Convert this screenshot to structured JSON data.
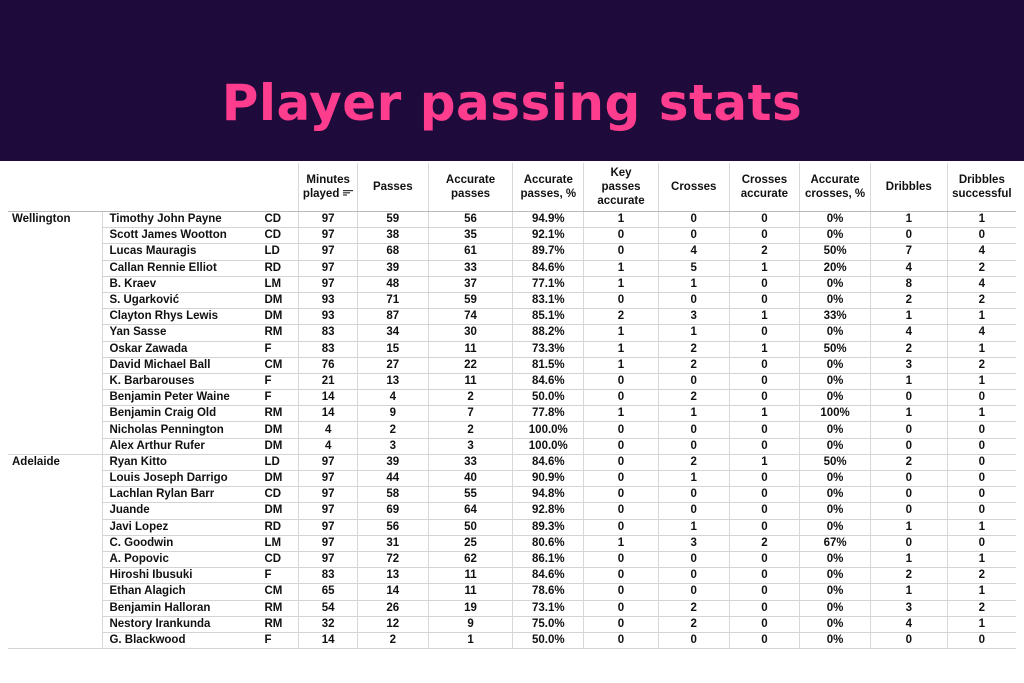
{
  "title": "Player passing stats",
  "chart_data": {
    "type": "table",
    "title": "Player passing stats",
    "columns": [
      "Minutes played",
      "Passes",
      "Accurate passes",
      "Accurate passes, %",
      "Key passes accurate",
      "Crosses",
      "Crosses accurate",
      "Accurate crosses, %",
      "Dribbles",
      "Dribbles successful"
    ],
    "column_lines": [
      [
        "Minutes",
        "played"
      ],
      [
        "Passes"
      ],
      [
        "Accurate",
        "passes"
      ],
      [
        "Accurate",
        "passes, %"
      ],
      [
        "Key",
        "passes",
        "accurate"
      ],
      [
        "Crosses"
      ],
      [
        "Crosses",
        "accurate"
      ],
      [
        "Accurate",
        "crosses, %"
      ],
      [
        "Dribbles"
      ],
      [
        "Dribbles",
        "successful"
      ]
    ],
    "sorted_by": "Minutes played",
    "rows": [
      {
        "team": "Wellington",
        "player": "Timothy John Payne",
        "pos": "CD",
        "values": [
          "97",
          "59",
          "56",
          "94.9%",
          "1",
          "0",
          "0",
          "0%",
          "1",
          "1"
        ]
      },
      {
        "team": "",
        "player": "Scott James Wootton",
        "pos": "CD",
        "values": [
          "97",
          "38",
          "35",
          "92.1%",
          "0",
          "0",
          "0",
          "0%",
          "0",
          "0"
        ]
      },
      {
        "team": "",
        "player": "Lucas Mauragis",
        "pos": "LD",
        "values": [
          "97",
          "68",
          "61",
          "89.7%",
          "0",
          "4",
          "2",
          "50%",
          "7",
          "4"
        ]
      },
      {
        "team": "",
        "player": "Callan Rennie Elliot",
        "pos": "RD",
        "values": [
          "97",
          "39",
          "33",
          "84.6%",
          "1",
          "5",
          "1",
          "20%",
          "4",
          "2"
        ]
      },
      {
        "team": "",
        "player": "B. Kraev",
        "pos": "LM",
        "values": [
          "97",
          "48",
          "37",
          "77.1%",
          "1",
          "1",
          "0",
          "0%",
          "8",
          "4"
        ]
      },
      {
        "team": "",
        "player": "S. Ugarković",
        "pos": "DM",
        "values": [
          "93",
          "71",
          "59",
          "83.1%",
          "0",
          "0",
          "0",
          "0%",
          "2",
          "2"
        ]
      },
      {
        "team": "",
        "player": "Clayton Rhys Lewis",
        "pos": "DM",
        "values": [
          "93",
          "87",
          "74",
          "85.1%",
          "2",
          "3",
          "1",
          "33%",
          "1",
          "1"
        ]
      },
      {
        "team": "",
        "player": "Yan Sasse",
        "pos": "RM",
        "values": [
          "83",
          "34",
          "30",
          "88.2%",
          "1",
          "1",
          "0",
          "0%",
          "4",
          "4"
        ]
      },
      {
        "team": "",
        "player": "Oskar Zawada",
        "pos": "F",
        "values": [
          "83",
          "15",
          "11",
          "73.3%",
          "1",
          "2",
          "1",
          "50%",
          "2",
          "1"
        ]
      },
      {
        "team": "",
        "player": "David Michael Ball",
        "pos": "CM",
        "values": [
          "76",
          "27",
          "22",
          "81.5%",
          "1",
          "2",
          "0",
          "0%",
          "3",
          "2"
        ]
      },
      {
        "team": "",
        "player": "K. Barbarouses",
        "pos": "F",
        "values": [
          "21",
          "13",
          "11",
          "84.6%",
          "0",
          "0",
          "0",
          "0%",
          "1",
          "1"
        ]
      },
      {
        "team": "",
        "player": "Benjamin Peter Waine",
        "pos": "F",
        "values": [
          "14",
          "4",
          "2",
          "50.0%",
          "0",
          "2",
          "0",
          "0%",
          "0",
          "0"
        ]
      },
      {
        "team": "",
        "player": "Benjamin Craig Old",
        "pos": "RM",
        "values": [
          "14",
          "9",
          "7",
          "77.8%",
          "1",
          "1",
          "1",
          "100%",
          "1",
          "1"
        ]
      },
      {
        "team": "",
        "player": "Nicholas Pennington",
        "pos": "DM",
        "values": [
          "4",
          "2",
          "2",
          "100.0%",
          "0",
          "0",
          "0",
          "0%",
          "0",
          "0"
        ]
      },
      {
        "team": "",
        "player": "Alex Arthur Rufer",
        "pos": "DM",
        "values": [
          "4",
          "3",
          "3",
          "100.0%",
          "0",
          "0",
          "0",
          "0%",
          "0",
          "0"
        ]
      },
      {
        "team": "Adelaide",
        "player": "Ryan Kitto",
        "pos": "LD",
        "values": [
          "97",
          "39",
          "33",
          "84.6%",
          "0",
          "2",
          "1",
          "50%",
          "2",
          "0"
        ]
      },
      {
        "team": "",
        "player": "Louis Joseph Darrigo",
        "pos": "DM",
        "values": [
          "97",
          "44",
          "40",
          "90.9%",
          "0",
          "1",
          "0",
          "0%",
          "0",
          "0"
        ]
      },
      {
        "team": "",
        "player": "Lachlan Rylan Barr",
        "pos": "CD",
        "values": [
          "97",
          "58",
          "55",
          "94.8%",
          "0",
          "0",
          "0",
          "0%",
          "0",
          "0"
        ]
      },
      {
        "team": "",
        "player": "Juande",
        "pos": "DM",
        "values": [
          "97",
          "69",
          "64",
          "92.8%",
          "0",
          "0",
          "0",
          "0%",
          "0",
          "0"
        ]
      },
      {
        "team": "",
        "player": "Javi Lopez",
        "pos": "RD",
        "values": [
          "97",
          "56",
          "50",
          "89.3%",
          "0",
          "1",
          "0",
          "0%",
          "1",
          "1"
        ]
      },
      {
        "team": "",
        "player": "C. Goodwin",
        "pos": "LM",
        "values": [
          "97",
          "31",
          "25",
          "80.6%",
          "1",
          "3",
          "2",
          "67%",
          "0",
          "0"
        ]
      },
      {
        "team": "",
        "player": "A. Popovic",
        "pos": "CD",
        "values": [
          "97",
          "72",
          "62",
          "86.1%",
          "0",
          "0",
          "0",
          "0%",
          "1",
          "1"
        ]
      },
      {
        "team": "",
        "player": "Hiroshi Ibusuki",
        "pos": "F",
        "values": [
          "83",
          "13",
          "11",
          "84.6%",
          "0",
          "0",
          "0",
          "0%",
          "2",
          "2"
        ]
      },
      {
        "team": "",
        "player": "Ethan Alagich",
        "pos": "CM",
        "values": [
          "65",
          "14",
          "11",
          "78.6%",
          "0",
          "0",
          "0",
          "0%",
          "1",
          "1"
        ]
      },
      {
        "team": "",
        "player": "Benjamin Halloran",
        "pos": "RM",
        "values": [
          "54",
          "26",
          "19",
          "73.1%",
          "0",
          "2",
          "0",
          "0%",
          "3",
          "2"
        ]
      },
      {
        "team": "",
        "player": "Nestory Irankunda",
        "pos": "RM",
        "values": [
          "32",
          "12",
          "9",
          "75.0%",
          "0",
          "2",
          "0",
          "0%",
          "4",
          "1"
        ]
      },
      {
        "team": "",
        "player": "G. Blackwood",
        "pos": "F",
        "values": [
          "14",
          "2",
          "1",
          "50.0%",
          "0",
          "0",
          "0",
          "0%",
          "0",
          "0"
        ]
      }
    ]
  },
  "colors": {
    "banner_bg": "#1f0a3c",
    "title": "#ff3d8f"
  },
  "icons": {
    "sort": "sort-descending-icon"
  }
}
